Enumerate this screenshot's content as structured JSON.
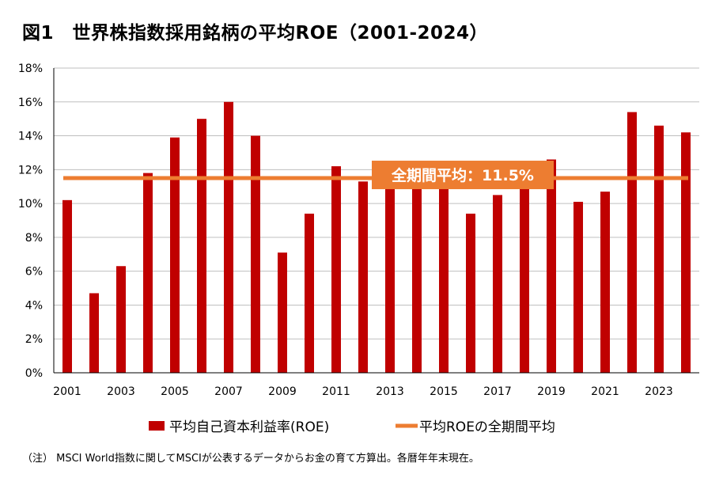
{
  "title": "図1　世界株指数採用銘柄の平均ROE（2001-2024）",
  "note": "（注）  MSCI World指数に関してMSCIが公表するデータからお金の育て方算出。各暦年年末現在。",
  "colors": {
    "bar": "#c00000",
    "avg_line": "#ed7d31",
    "grid": "#bfbfbf"
  },
  "chart_data": {
    "type": "bar",
    "title": "世界株指数採用銘柄の平均ROE（2001-2024）",
    "xlabel": "",
    "ylabel": "",
    "ylim": [
      0,
      18
    ],
    "yticks": [
      "0%",
      "2%",
      "4%",
      "6%",
      "8%",
      "10%",
      "12%",
      "14%",
      "16%",
      "18%"
    ],
    "categories": [
      "2001",
      "2002",
      "2003",
      "2004",
      "2005",
      "2006",
      "2007",
      "2008",
      "2009",
      "2010",
      "2011",
      "2012",
      "2013",
      "2014",
      "2015",
      "2016",
      "2017",
      "2018",
      "2019",
      "2020",
      "2021",
      "2022",
      "2023",
      "2024"
    ],
    "xtick_labels": [
      "2001",
      "",
      "2003",
      "",
      "2005",
      "",
      "2007",
      "",
      "2009",
      "",
      "2011",
      "",
      "2013",
      "",
      "2015",
      "",
      "2017",
      "",
      "2019",
      "",
      "2021",
      "",
      "2023",
      ""
    ],
    "series": [
      {
        "name": "平均自己資本利益率(ROE)",
        "values": [
          10.2,
          4.7,
          6.3,
          11.8,
          13.9,
          15.0,
          16.0,
          14.0,
          7.1,
          9.4,
          12.2,
          11.3,
          11.5,
          11.5,
          11.5,
          9.4,
          10.5,
          11.5,
          12.6,
          10.1,
          10.7,
          15.4,
          14.6,
          14.2
        ]
      }
    ],
    "average": {
      "name": "平均ROEの全期間平均",
      "value": 11.5,
      "label": "全期間平均：11.5%"
    },
    "legend": [
      "平均自己資本利益率(ROE)",
      "平均ROEの全期間平均"
    ]
  }
}
